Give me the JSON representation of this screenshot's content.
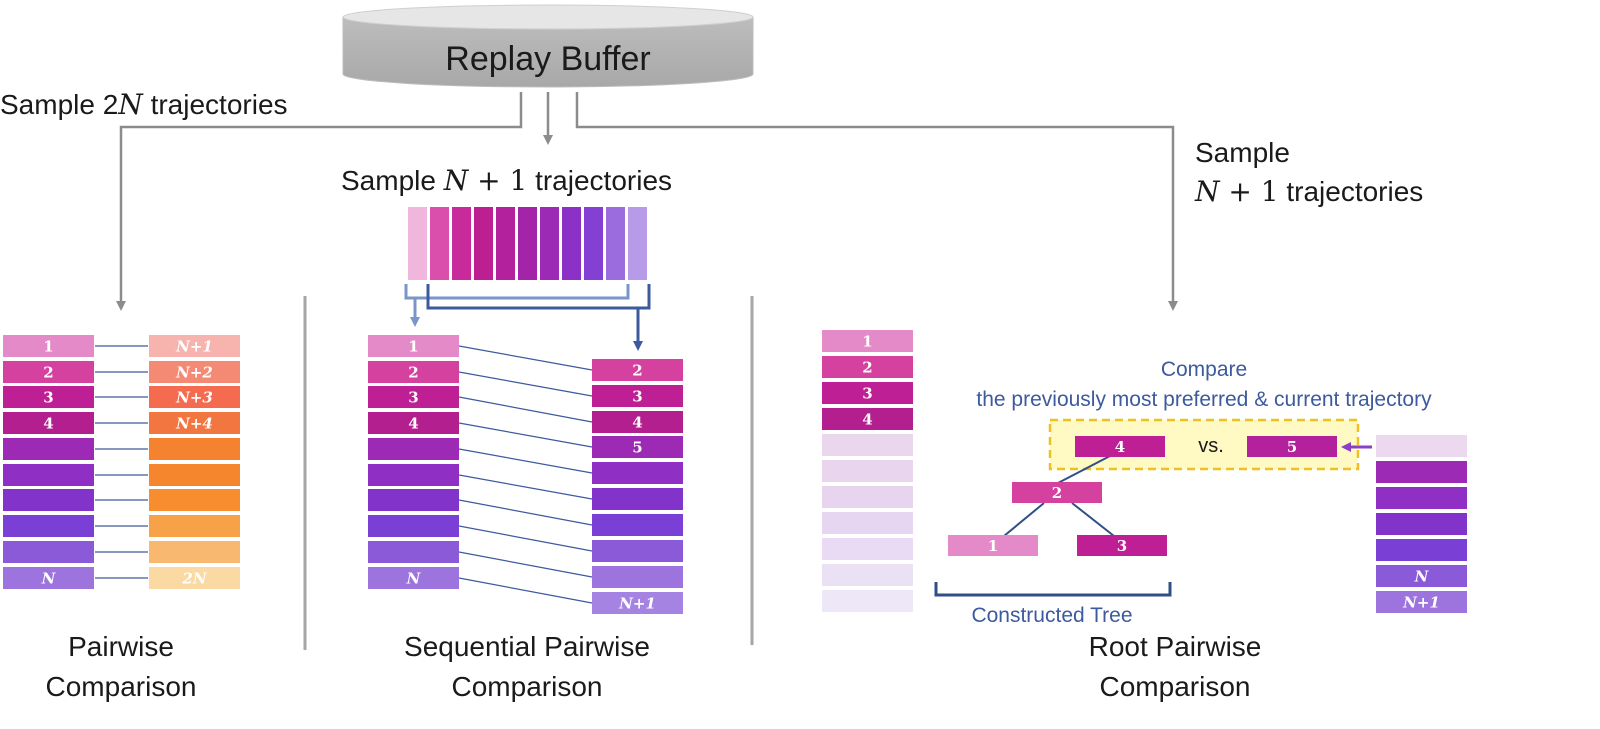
{
  "buffer": {
    "label": "Replay Buffer"
  },
  "sampling": {
    "left": {
      "prefix": "Sample 2",
      "var": "N",
      "suffix": " trajectories"
    },
    "middle": {
      "prefix": "Sample ",
      "var": "N",
      "op": " + 1",
      "suffix": " trajectories"
    },
    "right": {
      "line1": "Sample",
      "var": "N",
      "op": " + 1",
      "suffix": " trajectories"
    }
  },
  "pairwise": {
    "title_line1": "Pairwise",
    "title_line2": "Comparison",
    "left_labels": [
      "1",
      "2",
      "3",
      "4",
      "",
      "",
      "",
      "",
      "",
      "N"
    ],
    "right_labels": [
      "N+1",
      "N+2",
      "N+3",
      "N+4",
      "",
      "",
      "",
      "",
      "",
      "2N"
    ]
  },
  "sequential": {
    "title_line1": "Sequential Pairwise",
    "title_line2": "Comparison",
    "left_labels": [
      "1",
      "2",
      "3",
      "4",
      "",
      "",
      "",
      "",
      "",
      "N"
    ],
    "right_labels": [
      "2",
      "3",
      "4",
      "5",
      "",
      "",
      "",
      "",
      "",
      "N+1"
    ]
  },
  "root": {
    "title_line1": "Root Pairwise",
    "title_line2": "Comparison",
    "left_labels": [
      "1",
      "2",
      "3",
      "4",
      "",
      "",
      "",
      "",
      "",
      "",
      ""
    ],
    "right_labels": [
      "",
      "",
      "",
      "",
      "",
      "N",
      "N+1"
    ],
    "compare_line1": "Compare",
    "compare_line2": "the previously most preferred & current trajectory",
    "vs_left": "4",
    "vs_text": "vs.",
    "vs_right": "5",
    "tree_nodes": [
      "2",
      "1",
      "3"
    ],
    "tree_label": "Constructed Tree"
  },
  "colors": {
    "pink_light": "#e98fcb",
    "pink": "#d64fae",
    "magenta": "#c0249a",
    "purple": "#9b2fc4",
    "violet": "#7c3fd6",
    "lavender": "#9070e0",
    "orange_light": "#f6a8a0",
    "orange": "#f26b4c",
    "orange_mid": "#f68a34",
    "accent_blue": "#3d5a9e",
    "highlight_fill": "#fff9c4",
    "highlight_border": "#f0c020"
  }
}
